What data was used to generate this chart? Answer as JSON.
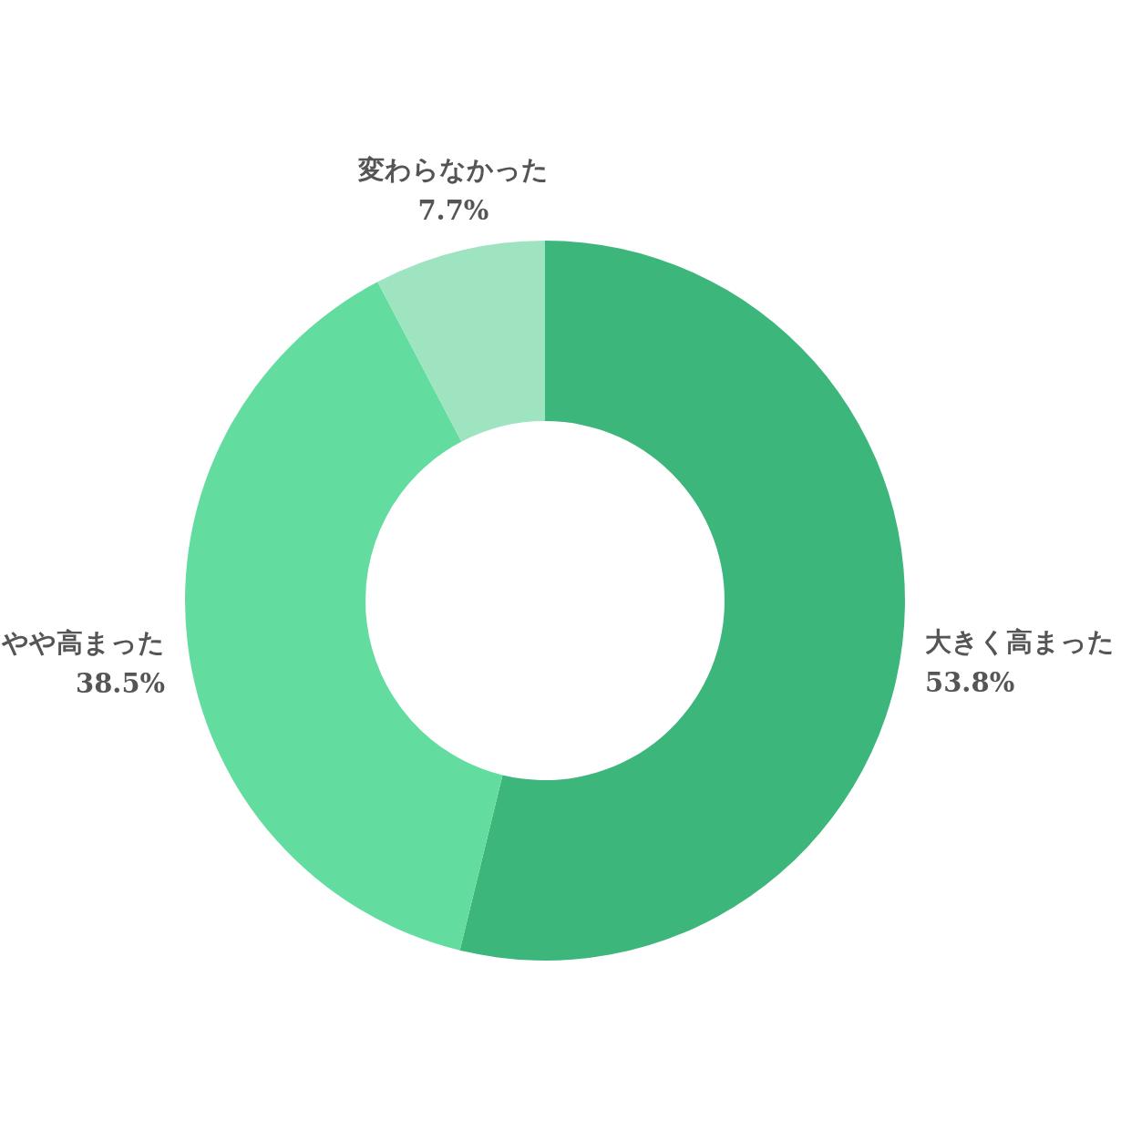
{
  "chart_data": {
    "type": "donut",
    "categories": [
      "大きく高まった",
      "やや高まった",
      "変わらなかった"
    ],
    "values": [
      53.8,
      38.5,
      7.7
    ],
    "value_labels": [
      "53.8%",
      "38.5%",
      "7.7%"
    ],
    "colors": [
      "#3db67b",
      "#63dc9f",
      "#9ee4c0"
    ]
  }
}
